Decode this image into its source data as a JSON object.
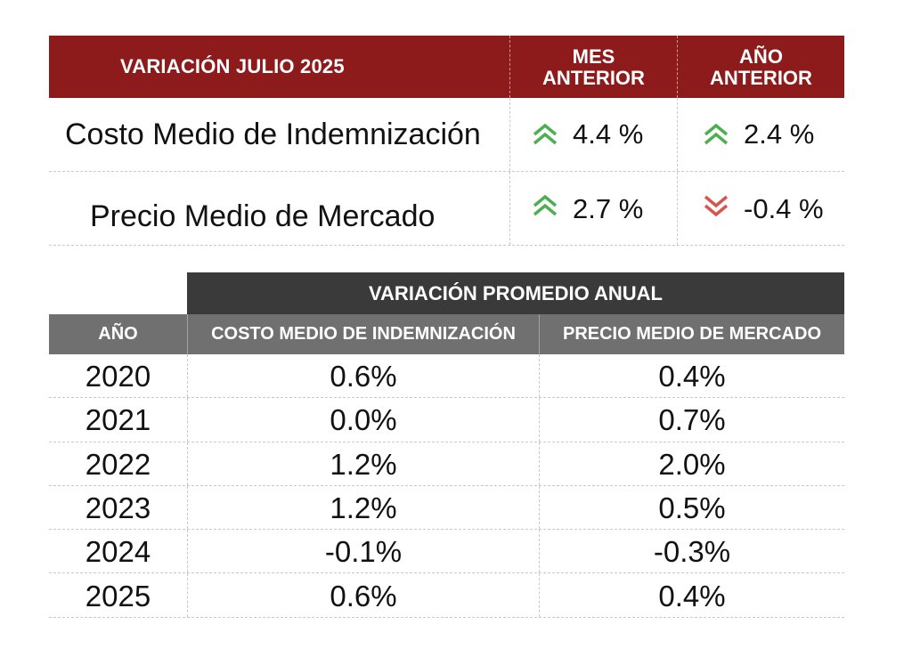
{
  "summary": {
    "header": {
      "title": "VARIACIÓN JULIO 2025",
      "col_mes": "MES\nANTERIOR",
      "col_anio": "AÑO\nANTERIOR"
    },
    "rows": [
      {
        "label": "Costo Medio de Indemnización",
        "mes": {
          "value": "4.4 %",
          "trend": "up",
          "icon": "double-chevron-up-icon"
        },
        "anio": {
          "value": "2.4 %",
          "trend": "up",
          "icon": "double-chevron-up-icon"
        }
      },
      {
        "label": "Precio Medio de Mercado",
        "mes": {
          "value": "2.7 %",
          "trend": "up",
          "icon": "double-chevron-up-icon"
        },
        "anio": {
          "value": "-0.4 %",
          "trend": "down",
          "icon": "double-chevron-down-icon"
        }
      }
    ],
    "colors": {
      "header_bg": "#8e1b1b",
      "up": "#4caf50",
      "down": "#d9534f"
    }
  },
  "annual": {
    "banner": "VARIACIÓN PROMEDIO ANUAL",
    "columns": [
      "AÑO",
      "COSTO MEDIO DE INDEMNIZACIÓN",
      "PRECIO MEDIO DE MERCADO"
    ],
    "rows": [
      {
        "year": "2020",
        "costo": "0.6%",
        "precio": "0.4%"
      },
      {
        "year": "2021",
        "costo": "0.0%",
        "precio": "0.7%"
      },
      {
        "year": "2022",
        "costo": "1.2%",
        "precio": "2.0%"
      },
      {
        "year": "2023",
        "costo": "1.2%",
        "precio": "0.5%"
      },
      {
        "year": "2024",
        "costo": "-0.1%",
        "precio": "-0.3%"
      },
      {
        "year": "2025",
        "costo": "0.6%",
        "precio": "0.4%"
      }
    ],
    "colors": {
      "banner_bg": "#3a3a3a",
      "header_bg": "#707070"
    }
  }
}
